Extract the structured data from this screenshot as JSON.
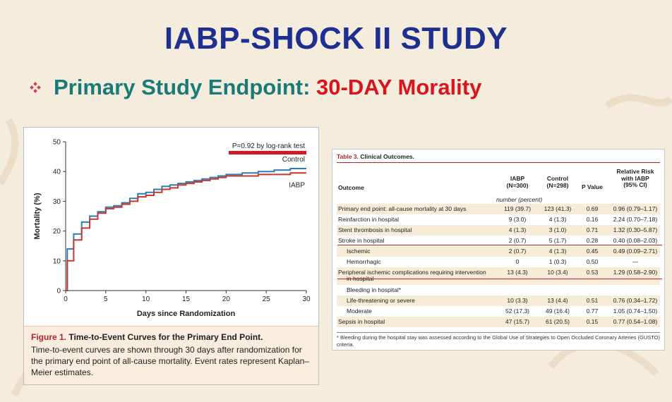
{
  "title": "IABP-SHOCK II STUDY",
  "subtitle": {
    "prefix": "Primary Study Endpoint: ",
    "highlight": "30-DAY Morality"
  },
  "figure": {
    "label": "Figure 1.",
    "title_text": " Time-to-Event Curves for the Primary End Point.",
    "body": "Time-to-event curves are shown through 30 days after randomization for the primary end point of all-cause mortality. Event rates represent Kaplan–Meier estimates."
  },
  "chart_data": {
    "type": "line",
    "title": "",
    "xlabel": "Days since Randomization",
    "ylabel": "Mortality (%)",
    "xlim": [
      0,
      30
    ],
    "ylim": [
      0,
      50
    ],
    "xticks": [
      0,
      5,
      10,
      15,
      20,
      25,
      30
    ],
    "yticks": [
      0,
      10,
      20,
      30,
      40,
      50
    ],
    "annotation": "P=0.92 by log-rank test",
    "grid": false,
    "series": [
      {
        "name": "Control",
        "color": "#2a7db5",
        "x": [
          0,
          0.2,
          1,
          2,
          3,
          4,
          5,
          6,
          7,
          8,
          9,
          10,
          11,
          12,
          13,
          14,
          15,
          16,
          17,
          18,
          19,
          20,
          22,
          24,
          26,
          28,
          30
        ],
        "y": [
          0,
          14,
          19,
          23,
          25,
          26.5,
          28,
          28.5,
          29.5,
          31,
          32.5,
          33,
          34,
          35,
          35.5,
          36,
          36.5,
          37,
          37.5,
          38,
          38.5,
          39,
          39.5,
          40,
          40.5,
          41,
          41
        ]
      },
      {
        "name": "IABP",
        "color": "#c8372d",
        "x": [
          0,
          0.2,
          1,
          2,
          3,
          4,
          5,
          6,
          7,
          8,
          9,
          10,
          11,
          12,
          13,
          14,
          15,
          16,
          17,
          18,
          19,
          20,
          22,
          24,
          26,
          28,
          30
        ],
        "y": [
          0,
          10,
          17,
          21,
          24,
          26,
          27.5,
          28,
          29,
          30,
          31.5,
          32,
          33,
          34,
          34.5,
          35.5,
          36,
          36.5,
          37,
          37.5,
          38,
          38.5,
          38.5,
          39,
          39,
          39.5,
          39.5
        ]
      }
    ]
  },
  "table": {
    "title_label": "Table 3.",
    "title_text": " Clinical Outcomes.",
    "headers": {
      "outcome": "Outcome",
      "iabp": [
        "IABP",
        "(N=300)"
      ],
      "control": [
        "Control",
        "(N=298)"
      ],
      "p": "P Value",
      "rr": [
        "Relative Risk",
        "with IABP",
        "(95% CI)"
      ]
    },
    "units": "number (percent)",
    "rows": [
      {
        "outcome": "Primary end point: all-cause mortality at 30 days",
        "iabp": "119 (39.7)",
        "control": "123 (41.3)",
        "p": "0.69",
        "rr": "0.96 (0.79–1.17)",
        "indent": false
      },
      {
        "outcome": "Reinfarction in hospital",
        "iabp": "9 (3.0)",
        "control": "4 (1.3)",
        "p": "0.16",
        "rr": "2.24 (0.70–7.18)",
        "indent": false
      },
      {
        "outcome": "Stent thrombosis in hospital",
        "iabp": "4 (1.3)",
        "control": "3 (1.0)",
        "p": "0.71",
        "rr": "1.32 (0.30–5.87)",
        "indent": false
      },
      {
        "outcome": "Stroke in hospital",
        "iabp": "2 (0.7)",
        "control": "5 (1.7)",
        "p": "0.28",
        "rr": "0.40 (0.08–2.03)",
        "indent": false
      },
      {
        "outcome": "Ischemic",
        "iabp": "2 (0.7)",
        "control": "4 (1.3)",
        "p": "0.45",
        "rr": "0.49 (0.09–2.71)",
        "indent": true
      },
      {
        "outcome": "Hemorrhagic",
        "iabp": "0",
        "control": "1 (0.3)",
        "p": "0.50",
        "rr": "—",
        "indent": true
      },
      {
        "outcome": "Peripheral ischemic complications requiring intervention",
        "outcome2": "in hospital",
        "iabp": "13 (4.3)",
        "control": "10 (3.4)",
        "p": "0.53",
        "rr": "1.29 (0.58–2.90)",
        "indent": false
      },
      {
        "outcome": "Bleeding in hospital*",
        "iabp": "",
        "control": "",
        "p": "",
        "rr": "",
        "indent": true
      },
      {
        "outcome": "Life-threatening or severe",
        "iabp": "10 (3.3)",
        "control": "13 (4.4)",
        "p": "0.51",
        "rr": "0.76 (0.34–1.72)",
        "indent": true
      },
      {
        "outcome": "Moderate",
        "iabp": "52 (17.3)",
        "control": "49 (16.4)",
        "p": "0.77",
        "rr": "1.05 (0.74–1.50)",
        "indent": true
      },
      {
        "outcome": "Sepsis in hospital",
        "iabp": "47 (15.7)",
        "control": "61 (20.5)",
        "p": "0.15",
        "rr": "0.77 (0.54–1.08)",
        "indent": false
      }
    ],
    "footnote": "* Bleeding during the hospital stay was assessed according to the Global Use of Strategies to Open Occluded Coronary Arteries (GUSTO) criteria."
  },
  "colors": {
    "title": "#1f2f8f",
    "subtitle": "#1a7a78",
    "highlight": "#d9141c",
    "annotation_underline": "#d11a22"
  }
}
